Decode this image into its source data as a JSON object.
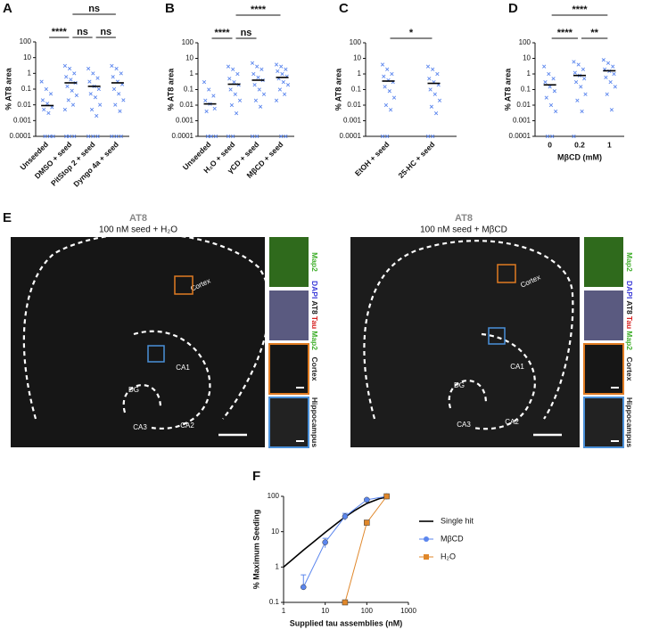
{
  "chart_data": [
    {
      "type": "strip",
      "label": "A",
      "ylabel": "% AT8 area",
      "ylog": true,
      "ylim": [
        0.0001,
        100
      ],
      "yticks": [
        0.0001,
        0.001,
        0.01,
        0.1,
        1,
        10,
        100
      ],
      "color": "#5b86ee",
      "categories": [
        "Unseeded",
        "DMSO + seed",
        "PitStop 2 + seed",
        "Dyngo 4a + seed"
      ],
      "means": [
        0.009,
        0.25,
        0.15,
        0.25
      ],
      "points": [
        [
          0.3,
          0.1,
          0.05,
          0.02,
          0.012,
          0.007,
          0.005,
          0.003,
          0.0001,
          0.0001,
          0.0001
        ],
        [
          3,
          2,
          1,
          0.6,
          0.4,
          0.25,
          0.15,
          0.08,
          0.04,
          0.02,
          0.01,
          0.005,
          0.0001,
          0.0001,
          0.0001
        ],
        [
          2,
          1,
          0.5,
          0.3,
          0.15,
          0.1,
          0.05,
          0.03,
          0.01,
          0.005,
          0.002,
          0.0001,
          0.0001,
          0.0001
        ],
        [
          3,
          2,
          1,
          0.6,
          0.3,
          0.2,
          0.1,
          0.05,
          0.02,
          0.01,
          0.004,
          0.0001,
          0.0001,
          0.0001
        ]
      ],
      "significance": [
        {
          "from": 0,
          "to": 1,
          "label": "****"
        },
        {
          "from": 1,
          "to": 2,
          "label": "ns"
        },
        {
          "from": 2,
          "to": 3,
          "label": "ns"
        },
        {
          "from": 1,
          "to": 3,
          "label": "ns"
        }
      ]
    },
    {
      "type": "strip",
      "label": "B",
      "ylabel": "% AT8 area",
      "ylog": true,
      "ylim": [
        0.0001,
        100
      ],
      "yticks": [
        0.0001,
        0.001,
        0.01,
        0.1,
        1,
        10,
        100
      ],
      "color": "#5b86ee",
      "categories": [
        "Unseeded",
        "H₂O + seed",
        "γCD + seed",
        "MβCD + seed"
      ],
      "means": [
        0.012,
        0.22,
        0.4,
        0.6
      ],
      "points": [
        [
          0.3,
          0.1,
          0.04,
          0.02,
          0.012,
          0.006,
          0.004,
          0.0001,
          0.0001,
          0.0001
        ],
        [
          3,
          2,
          1,
          0.5,
          0.3,
          0.2,
          0.1,
          0.05,
          0.02,
          0.01,
          0.003,
          0.0001,
          0.0001
        ],
        [
          5,
          3,
          2,
          1,
          0.6,
          0.4,
          0.2,
          0.1,
          0.05,
          0.02,
          0.008,
          0.0001,
          0.0001
        ],
        [
          4,
          3,
          2,
          1.5,
          1,
          0.7,
          0.5,
          0.3,
          0.2,
          0.1,
          0.05,
          0.02,
          0.0001,
          0.0001
        ]
      ],
      "significance": [
        {
          "from": 0,
          "to": 1,
          "label": "****"
        },
        {
          "from": 1,
          "to": 2,
          "label": "ns"
        },
        {
          "from": 1,
          "to": 3,
          "label": "****"
        }
      ]
    },
    {
      "type": "strip",
      "label": "C",
      "ylabel": "% AT8 area",
      "ylog": true,
      "ylim": [
        0.0001,
        100
      ],
      "yticks": [
        0.0001,
        0.001,
        0.01,
        0.1,
        1,
        10,
        100
      ],
      "color": "#5b86ee",
      "categories": [
        "EtOH + seed",
        "25-HC + seed"
      ],
      "means": [
        0.35,
        0.25
      ],
      "points": [
        [
          4,
          2,
          1,
          0.7,
          0.4,
          0.3,
          0.15,
          0.08,
          0.03,
          0.01,
          0.005,
          0.0001,
          0.0001
        ],
        [
          3,
          2,
          1,
          0.5,
          0.3,
          0.2,
          0.1,
          0.05,
          0.02,
          0.008,
          0.003,
          0.0001,
          0.0001
        ]
      ],
      "significance": [
        {
          "from": 0,
          "to": 1,
          "label": "*"
        }
      ]
    },
    {
      "type": "strip",
      "label": "D",
      "ylabel": "% AT8 area",
      "xlabel": "MβCD (mM)",
      "ylog": true,
      "ylim": [
        0.0001,
        100
      ],
      "yticks": [
        0.0001,
        0.001,
        0.01,
        0.1,
        1,
        10,
        100
      ],
      "color": "#5b86ee",
      "categories": [
        "0",
        "0.2",
        "1"
      ],
      "means": [
        0.2,
        0.8,
        1.6
      ],
      "points": [
        [
          3,
          1,
          0.5,
          0.3,
          0.15,
          0.08,
          0.03,
          0.01,
          0.004,
          0.0001,
          0.0001
        ],
        [
          6,
          4,
          2,
          1.2,
          0.8,
          0.5,
          0.3,
          0.15,
          0.05,
          0.02,
          0.004,
          0.0001
        ],
        [
          8,
          5,
          3,
          2,
          1.5,
          1,
          0.6,
          0.3,
          0.15,
          0.05,
          0.005
        ]
      ],
      "significance": [
        {
          "from": 0,
          "to": 1,
          "label": "****"
        },
        {
          "from": 1,
          "to": 2,
          "label": "**"
        },
        {
          "from": 0,
          "to": 2,
          "label": "****"
        }
      ]
    },
    {
      "type": "line",
      "label": "F",
      "xlabel": "Supplied tau assemblies (nM)",
      "ylabel": "% Maximum Seeding",
      "xlog": true,
      "ylog": true,
      "xlim": [
        1,
        1000
      ],
      "ylim": [
        0.1,
        100
      ],
      "xticks": [
        1,
        10,
        100,
        1000
      ],
      "yticks": [
        0.1,
        1,
        10,
        100
      ],
      "series": [
        {
          "name": "Single hit",
          "color": "#000000",
          "marker": "none",
          "x": [
            1,
            2,
            3,
            5,
            10,
            20,
            30,
            50,
            100,
            200,
            300
          ],
          "values": [
            1.0,
            2.0,
            3.0,
            4.9,
            9.5,
            18,
            26,
            39,
            63,
            86,
            95
          ]
        },
        {
          "name": "MβCD",
          "color": "#5b86ee",
          "marker": "circle",
          "x": [
            3,
            10,
            30,
            100,
            300
          ],
          "values": [
            0.27,
            5,
            27,
            80,
            100
          ],
          "errors": [
            0.33,
            1.5,
            6,
            5,
            0
          ]
        },
        {
          "name": "H₂O",
          "color": "#e0872a",
          "marker": "square",
          "x": [
            30,
            100,
            300
          ],
          "values": [
            0.1,
            18,
            100
          ],
          "errors": [
            0,
            3,
            0
          ]
        }
      ]
    }
  ],
  "panel_e": {
    "label": "E",
    "images": [
      {
        "title": "AT8",
        "subtitle": "100 nM seed + H₂O",
        "regions": [
          "Cortex",
          "CA1",
          "DG",
          "CA3",
          "CA2"
        ],
        "insets": [
          [
            {
              "text": "Map2",
              "color": "#3fae2a"
            }
          ],
          [
            {
              "text": "DAPI",
              "color": "#3a3ad8"
            },
            {
              "text": "AT8",
              "color": "#222222"
            },
            {
              "text": "Tau",
              "color": "#d62020"
            },
            {
              "text": "Map2",
              "color": "#3fae2a"
            }
          ],
          [
            {
              "text": "Cortex",
              "color": "#222222"
            }
          ],
          [
            {
              "text": "Hippocampus",
              "color": "#222222"
            }
          ]
        ]
      },
      {
        "title": "AT8",
        "subtitle": "100 nM seed + MβCD",
        "regions": [
          "Cortex",
          "CA1",
          "DG",
          "CA3",
          "CA2"
        ],
        "insets": [
          [
            {
              "text": "Map2",
              "color": "#3fae2a"
            }
          ],
          [
            {
              "text": "DAPI",
              "color": "#3a3ad8"
            },
            {
              "text": "AT8",
              "color": "#222222"
            },
            {
              "text": "Tau",
              "color": "#d62020"
            },
            {
              "text": "Map2",
              "color": "#3fae2a"
            }
          ],
          [
            {
              "text": "Cortex",
              "color": "#222222"
            }
          ],
          [
            {
              "text": "Hippocampus",
              "color": "#222222"
            }
          ]
        ]
      }
    ]
  }
}
